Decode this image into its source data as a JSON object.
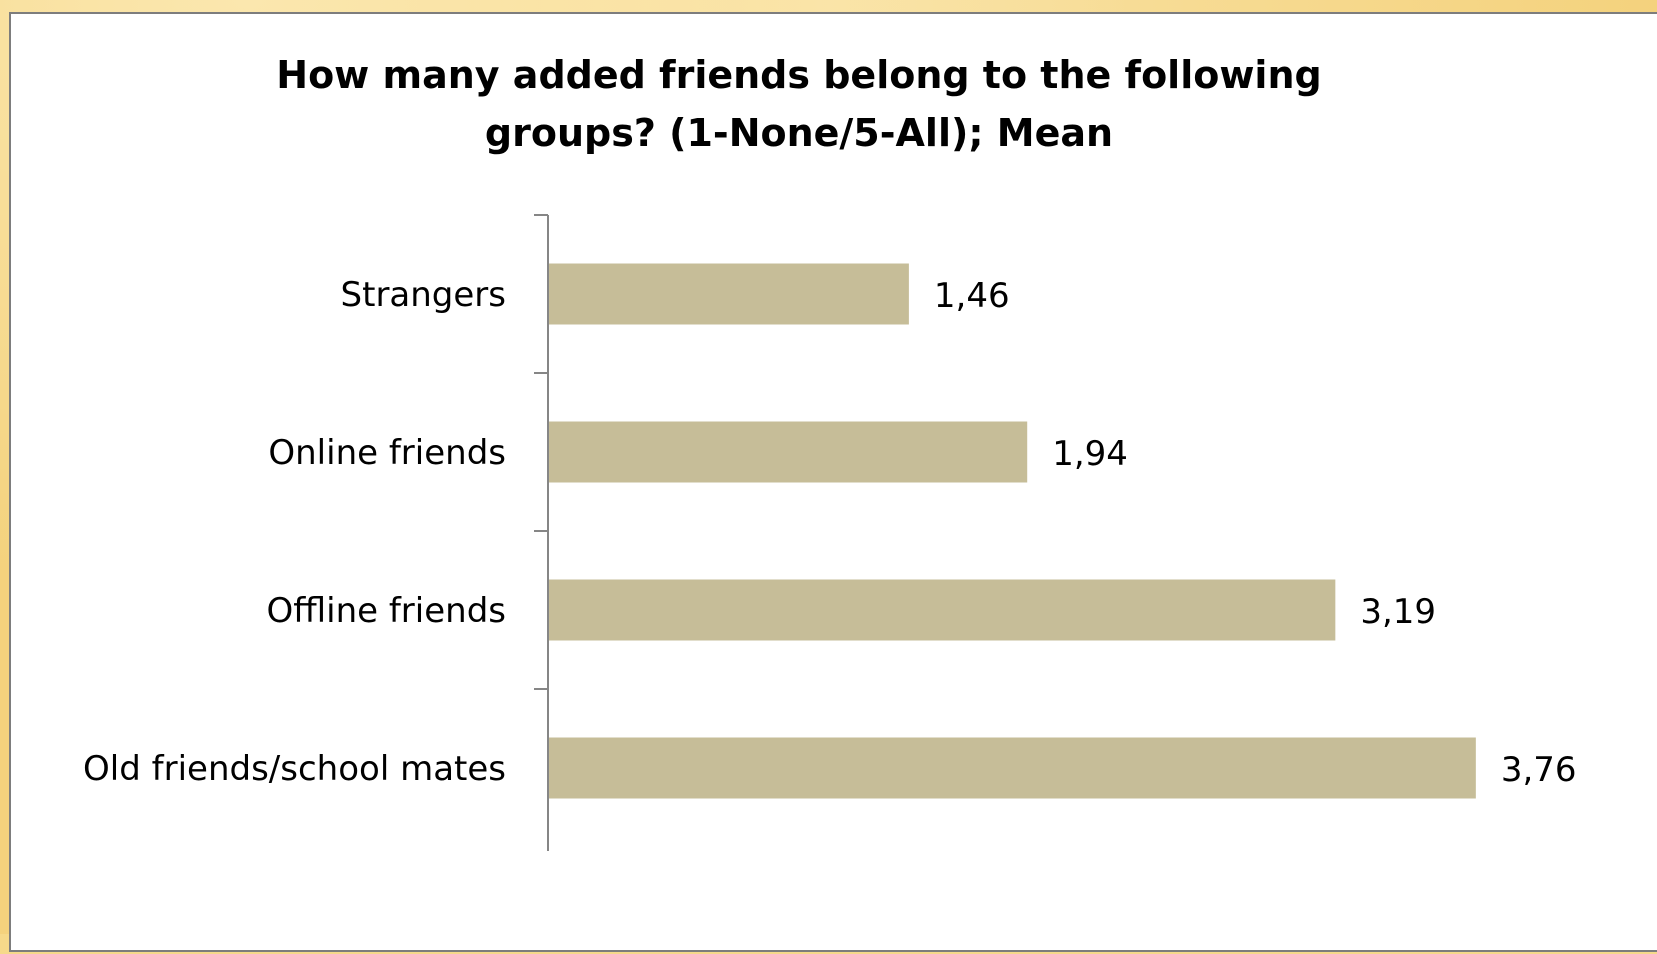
{
  "chart_data": {
    "type": "bar",
    "orientation": "horizontal",
    "title_lines": [
      "How many added friends belong to the following",
      "groups? (1-None/5-All); Mean"
    ],
    "categories": [
      "Strangers",
      "Online friends",
      "Offline friends",
      "Old friends/school mates"
    ],
    "values": [
      1.46,
      1.94,
      3.19,
      3.76
    ],
    "value_labels": [
      "1,46",
      "1,94",
      "3,19",
      "3,76"
    ],
    "bar_color": "#c6bd98",
    "axis_color": "#868686",
    "xlim": [
      0,
      4
    ],
    "grid": false,
    "legend": "none"
  }
}
